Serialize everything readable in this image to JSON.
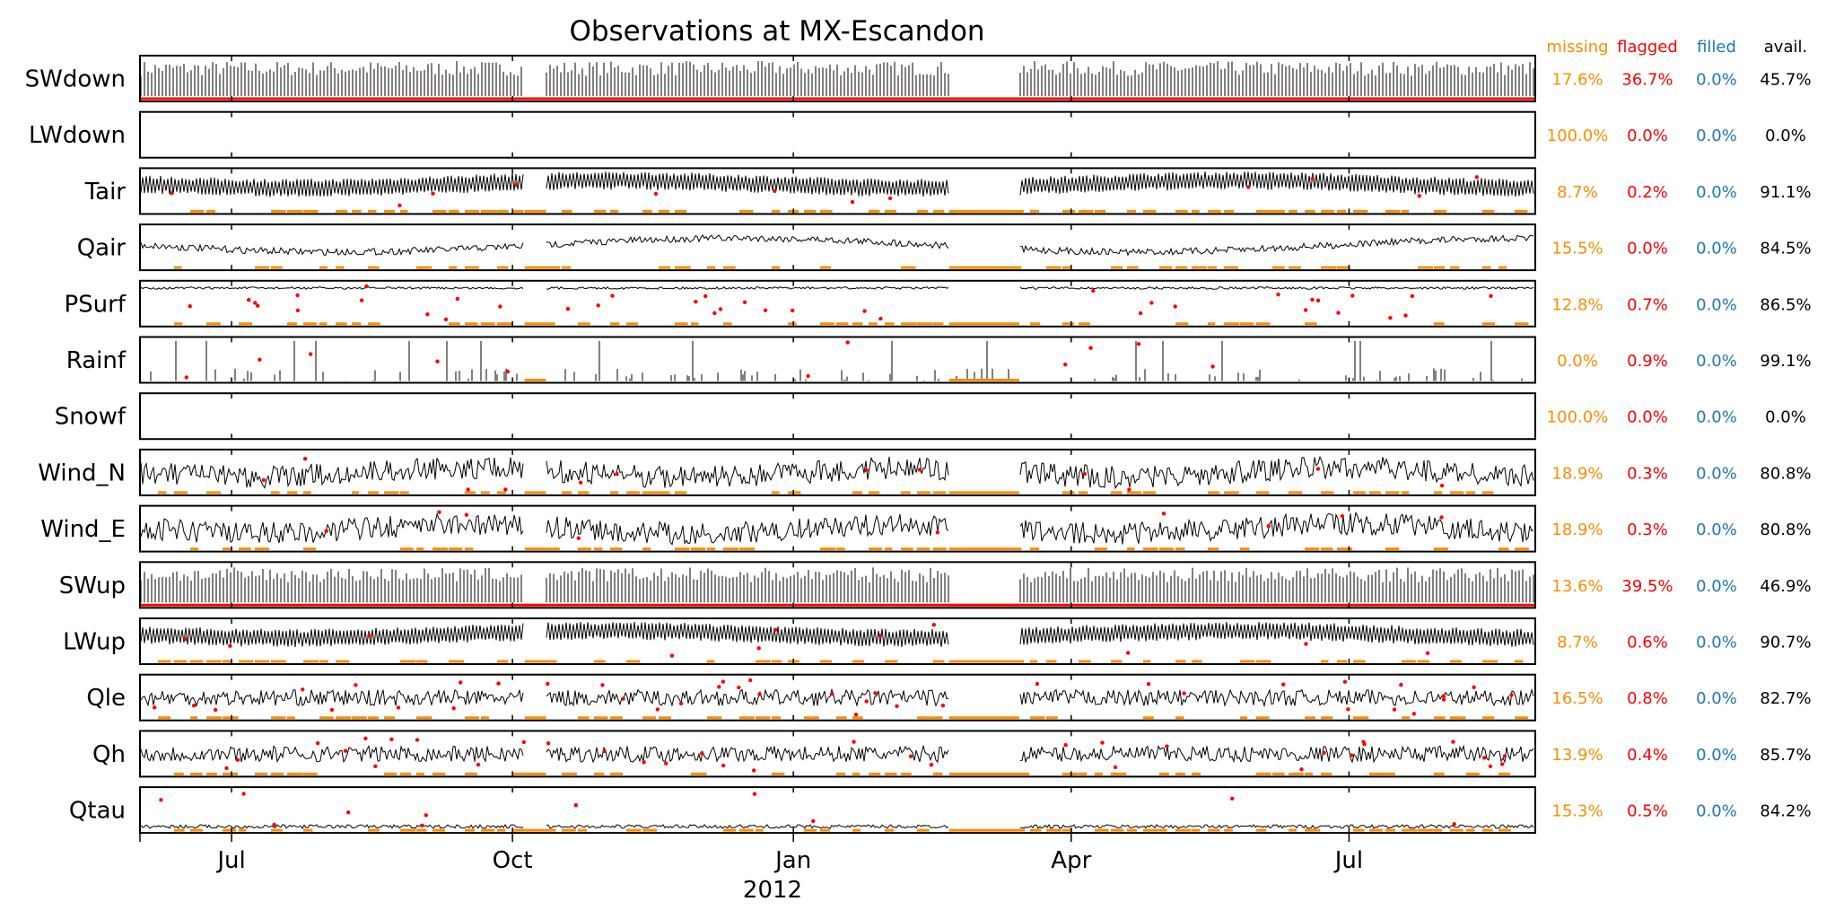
{
  "chart_data": {
    "type": "line",
    "title": "Observations at MX-Escandon",
    "xlabel": "",
    "x_tick_labels": [
      "Jul",
      "Oct",
      "Jan",
      "Apr",
      "Jul"
    ],
    "x_year_label": "2012",
    "x_range": [
      "2011-06-01",
      "2012-08-31"
    ],
    "x_ticks": [
      "2011-07-01",
      "2011-10-01",
      "2012-01-01",
      "2012-04-01",
      "2012-07-01"
    ],
    "stat_headers": {
      "missing": "missing",
      "flagged": "flagged",
      "filled": "filled",
      "avail": "avail."
    },
    "colors": {
      "data": "#000000",
      "missing": "#ff8c00",
      "flagged": "#ff0000",
      "filled": "#1f77b4",
      "avail": "#000000"
    },
    "data_gaps": [
      [
        "2011-10-05",
        "2011-10-12"
      ],
      [
        "2012-02-21",
        "2012-03-15"
      ]
    ],
    "series": [
      {
        "name": "SWdown",
        "style": "solar",
        "missing": "17.6%",
        "flagged": "36.7%",
        "filled": "0.0%",
        "avail": "45.7%"
      },
      {
        "name": "LWdown",
        "style": "empty",
        "missing": "100.0%",
        "flagged": "0.0%",
        "filled": "0.0%",
        "avail": "0.0%"
      },
      {
        "name": "Tair",
        "style": "diurnal",
        "missing": "8.7%",
        "flagged": "0.2%",
        "filled": "0.0%",
        "avail": "91.1%"
      },
      {
        "name": "Qair",
        "style": "smooth",
        "missing": "15.5%",
        "flagged": "0.0%",
        "filled": "0.0%",
        "avail": "84.5%"
      },
      {
        "name": "PSurf",
        "style": "flat",
        "missing": "12.8%",
        "flagged": "0.7%",
        "filled": "0.0%",
        "avail": "86.5%"
      },
      {
        "name": "Rainf",
        "style": "spikes",
        "missing": "0.0%",
        "flagged": "0.9%",
        "filled": "0.0%",
        "avail": "99.1%"
      },
      {
        "name": "Snowf",
        "style": "empty",
        "missing": "100.0%",
        "flagged": "0.0%",
        "filled": "0.0%",
        "avail": "0.0%"
      },
      {
        "name": "Wind_N",
        "style": "noise",
        "missing": "18.9%",
        "flagged": "0.3%",
        "filled": "0.0%",
        "avail": "80.8%"
      },
      {
        "name": "Wind_E",
        "style": "noise",
        "missing": "18.9%",
        "flagged": "0.3%",
        "filled": "0.0%",
        "avail": "80.8%"
      },
      {
        "name": "SWup",
        "style": "solar",
        "missing": "13.6%",
        "flagged": "39.5%",
        "filled": "0.0%",
        "avail": "46.9%"
      },
      {
        "name": "LWup",
        "style": "diurnal",
        "missing": "8.7%",
        "flagged": "0.6%",
        "filled": "0.0%",
        "avail": "90.7%"
      },
      {
        "name": "Qle",
        "style": "flux",
        "missing": "16.5%",
        "flagged": "0.8%",
        "filled": "0.0%",
        "avail": "82.7%"
      },
      {
        "name": "Qh",
        "style": "flux",
        "missing": "13.9%",
        "flagged": "0.4%",
        "filled": "0.0%",
        "avail": "85.7%"
      },
      {
        "name": "Qtau",
        "style": "low",
        "missing": "15.3%",
        "flagged": "0.5%",
        "filled": "0.0%",
        "avail": "84.2%"
      }
    ]
  }
}
